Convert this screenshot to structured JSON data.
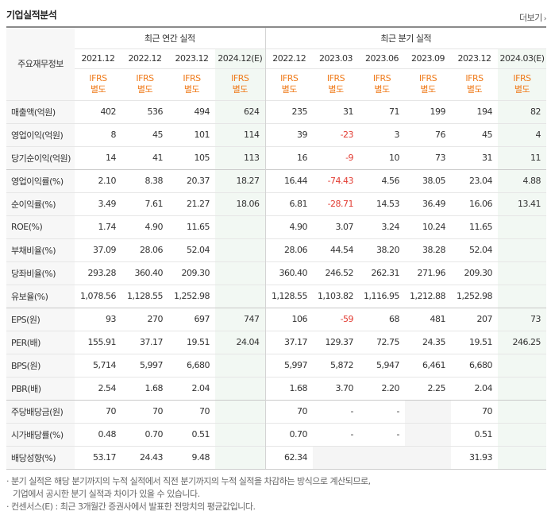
{
  "header": {
    "title": "기업실적분석",
    "more_label": "더보기",
    "more_arrow": "›"
  },
  "table": {
    "row_header": "주요재무정보",
    "groups": [
      "최근 연간 실적",
      "최근 분기 실적"
    ],
    "periods": [
      "2021.12",
      "2022.12",
      "2023.12",
      "2024.12(E)",
      "2022.12",
      "2023.03",
      "2023.06",
      "2023.09",
      "2023.12",
      "2024.03(E)"
    ],
    "basis_top": "IFRS",
    "basis_bottom": "별도",
    "rows": [
      {
        "label": "매출액(억원)",
        "values": [
          "402",
          "536",
          "494",
          "624",
          "235",
          "31",
          "71",
          "199",
          "194",
          "82"
        ]
      },
      {
        "label": "영업이익(억원)",
        "values": [
          "8",
          "45",
          "101",
          "114",
          "39",
          "-23",
          "3",
          "76",
          "45",
          "4"
        ]
      },
      {
        "label": "당기순이익(억원)",
        "values": [
          "14",
          "41",
          "105",
          "113",
          "16",
          "-9",
          "10",
          "73",
          "31",
          "11"
        ]
      },
      {
        "label": "영업이익률(%)",
        "values": [
          "2.10",
          "8.38",
          "20.37",
          "18.27",
          "16.44",
          "-74.43",
          "4.56",
          "38.05",
          "23.04",
          "4.88"
        ]
      },
      {
        "label": "순이익률(%)",
        "values": [
          "3.49",
          "7.61",
          "21.27",
          "18.06",
          "6.81",
          "-28.71",
          "14.53",
          "36.49",
          "16.06",
          "13.41"
        ]
      },
      {
        "label": "ROE(%)",
        "values": [
          "1.74",
          "4.90",
          "11.65",
          "",
          "4.90",
          "3.07",
          "3.24",
          "10.24",
          "11.65",
          ""
        ]
      },
      {
        "label": "부채비율(%)",
        "values": [
          "37.09",
          "28.06",
          "52.04",
          "",
          "28.06",
          "44.54",
          "38.20",
          "38.28",
          "52.04",
          ""
        ]
      },
      {
        "label": "당좌비율(%)",
        "values": [
          "293.28",
          "360.40",
          "209.30",
          "",
          "360.40",
          "246.52",
          "262.31",
          "271.96",
          "209.30",
          ""
        ]
      },
      {
        "label": "유보율(%)",
        "values": [
          "1,078.56",
          "1,128.55",
          "1,252.98",
          "",
          "1,128.55",
          "1,103.82",
          "1,116.95",
          "1,212.88",
          "1,252.98",
          ""
        ]
      },
      {
        "label": "EPS(원)",
        "values": [
          "93",
          "270",
          "697",
          "747",
          "106",
          "-59",
          "68",
          "481",
          "207",
          "73"
        ]
      },
      {
        "label": "PER(배)",
        "values": [
          "155.91",
          "37.17",
          "19.51",
          "24.04",
          "37.17",
          "129.37",
          "72.75",
          "24.35",
          "19.51",
          "246.25"
        ]
      },
      {
        "label": "BPS(원)",
        "values": [
          "5,714",
          "5,997",
          "6,680",
          "",
          "5,997",
          "5,872",
          "5,947",
          "6,461",
          "6,680",
          ""
        ]
      },
      {
        "label": "PBR(배)",
        "values": [
          "2.54",
          "1.68",
          "2.04",
          "",
          "1.68",
          "3.70",
          "2.20",
          "2.25",
          "2.04",
          ""
        ]
      },
      {
        "label": "주당배당금(원)",
        "values": [
          "70",
          "70",
          "70",
          "",
          "70",
          "-",
          "-",
          "",
          "70",
          ""
        ]
      },
      {
        "label": "시가배당률(%)",
        "values": [
          "0.48",
          "0.70",
          "0.51",
          "",
          "0.70",
          "-",
          "-",
          "",
          "0.51",
          ""
        ]
      },
      {
        "label": "배당성향(%)",
        "values": [
          "53.17",
          "24.43",
          "9.48",
          "",
          "62.34",
          "",
          "",
          "",
          "31.93",
          ""
        ]
      }
    ]
  },
  "footnotes": [
    "· 분기 실적은 해당 분기까지의 누적 실적에서 직전 분기까지의 누적 실적을 차감하는 방식으로 계산되므로,",
    "기업에서 공시한 분기 실적과 차이가 있을 수 있습니다.",
    "· 컨센서스(E) : 최근 3개월간 증권사에서 발표한 전망치의 평균값입니다."
  ],
  "colors": {
    "negative": "#e23b31",
    "ifrs": "#ef7a1a",
    "estimate_bg": "#f2f8f3",
    "label_bg": "#f7f7f7"
  }
}
